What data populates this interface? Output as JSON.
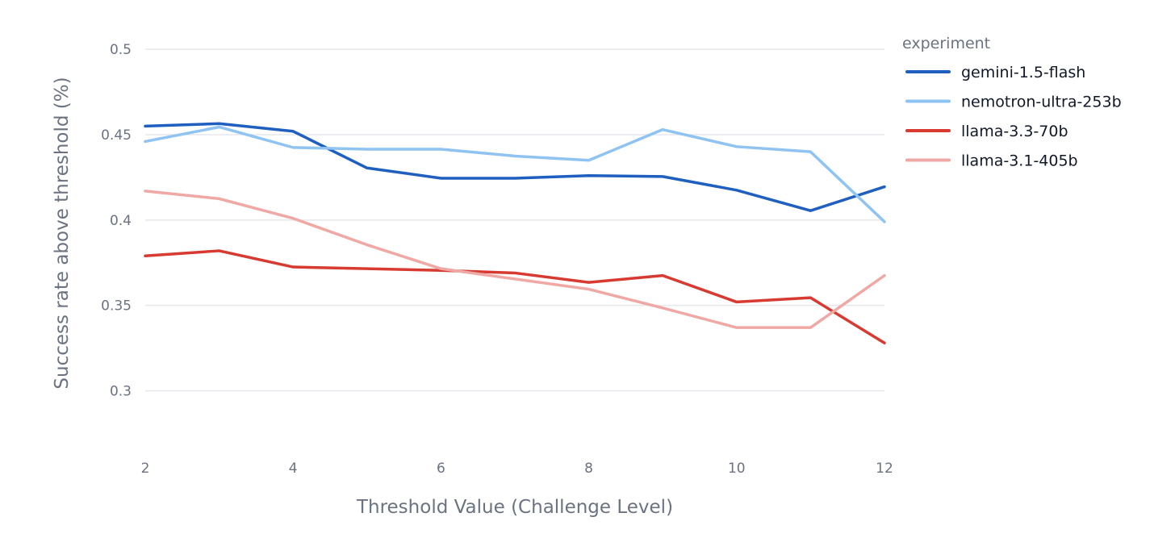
{
  "chart_data": {
    "type": "line",
    "title": "",
    "xlabel": "Threshold Value (Challenge Level)",
    "ylabel": "Success rate above threshold (%)",
    "x": [
      2,
      3,
      4,
      5,
      6,
      7,
      8,
      9,
      10,
      11,
      12
    ],
    "xlim": [
      2,
      12
    ],
    "ylim": [
      0.27,
      0.51
    ],
    "x_ticks": [
      2,
      4,
      6,
      8,
      10,
      12
    ],
    "x_tick_labels": [
      "2",
      "4",
      "6",
      "8",
      "10",
      "12"
    ],
    "y_ticks": [
      0.3,
      0.35,
      0.4,
      0.45,
      0.5
    ],
    "y_tick_labels": [
      "0.3",
      "0.35",
      "0.4",
      "0.45",
      "0.5"
    ],
    "grid": true,
    "legend": {
      "title": "experiment",
      "position": "right"
    },
    "series": [
      {
        "name": "gemini-1.5-flash",
        "color": "#1f5fbf",
        "values": [
          0.455,
          0.4565,
          0.452,
          0.4305,
          0.4245,
          0.4245,
          0.426,
          0.4255,
          0.4175,
          0.4055,
          0.4195
        ]
      },
      {
        "name": "nemotron-ultra-253b",
        "color": "#8ec3f2",
        "values": [
          0.446,
          0.4545,
          0.4425,
          0.4415,
          0.4415,
          0.4375,
          0.435,
          0.453,
          0.443,
          0.44,
          0.399
        ]
      },
      {
        "name": "llama-3.3-70b",
        "color": "#d73a31",
        "values": [
          0.379,
          0.382,
          0.3725,
          0.3715,
          0.3705,
          0.369,
          0.3635,
          0.3675,
          0.352,
          0.3545,
          0.328
        ]
      },
      {
        "name": "llama-3.1-405b",
        "color": "#f0a8a4",
        "values": [
          0.417,
          0.4125,
          0.401,
          0.3855,
          0.3715,
          0.3655,
          0.3595,
          0.3485,
          0.337,
          0.337,
          0.3675
        ]
      }
    ]
  }
}
